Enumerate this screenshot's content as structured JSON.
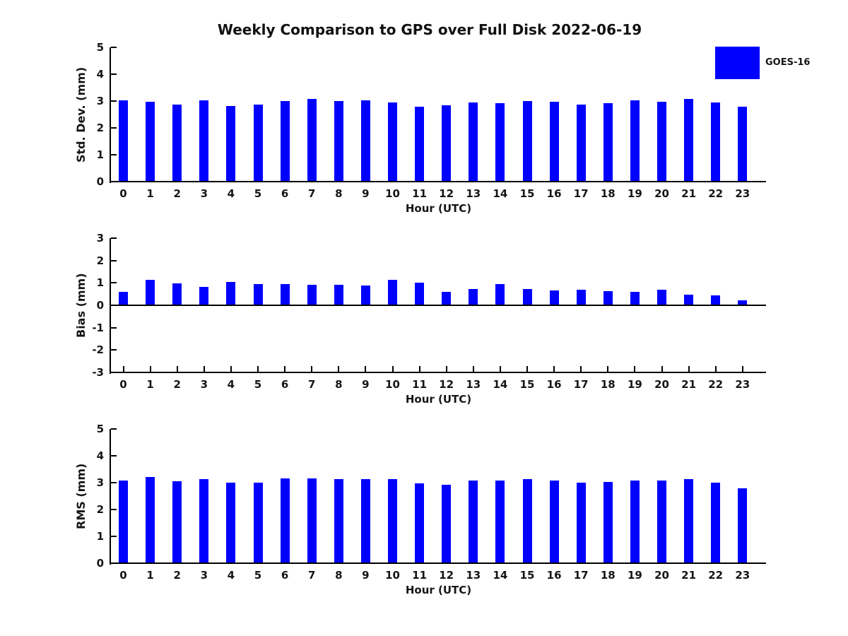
{
  "title": "Weekly Comparison to GPS over Full Disk 2022-06-19",
  "legend": {
    "label": "GOES-16",
    "color": "#0000ff",
    "position": "upper-right-outside"
  },
  "colors": {
    "bar": "#0000ff",
    "axis": "#000000",
    "text": "#151515",
    "background": "#ffffff"
  },
  "chart_data": [
    {
      "type": "bar",
      "title": "",
      "xlabel": "Hour (UTC)",
      "ylabel": "Std. Dev. (mm)",
      "categories": [
        "0",
        "1",
        "2",
        "3",
        "4",
        "5",
        "6",
        "7",
        "8",
        "9",
        "10",
        "11",
        "12",
        "13",
        "14",
        "15",
        "16",
        "17",
        "18",
        "19",
        "20",
        "21",
        "22",
        "23"
      ],
      "values": [
        3.03,
        2.97,
        2.87,
        3.03,
        2.82,
        2.88,
        3.0,
        3.07,
        3.0,
        3.03,
        2.95,
        2.78,
        2.84,
        2.95,
        2.92,
        3.01,
        2.97,
        2.88,
        2.93,
        3.02,
        2.98,
        3.09,
        2.96,
        2.78
      ],
      "ylim": [
        0,
        5
      ],
      "yticks": [
        0,
        1,
        2,
        3,
        4,
        5
      ],
      "grid": false,
      "zero_line": false,
      "series_name": "GOES-16"
    },
    {
      "type": "bar",
      "title": "",
      "xlabel": "Hour (UTC)",
      "ylabel": "Bias (mm)",
      "categories": [
        "0",
        "1",
        "2",
        "3",
        "4",
        "5",
        "6",
        "7",
        "8",
        "9",
        "10",
        "11",
        "12",
        "13",
        "14",
        "15",
        "16",
        "17",
        "18",
        "19",
        "20",
        "21",
        "22",
        "23"
      ],
      "values": [
        0.61,
        1.14,
        0.98,
        0.82,
        1.05,
        0.94,
        0.96,
        0.91,
        0.93,
        0.88,
        1.14,
        1.02,
        0.6,
        0.74,
        0.95,
        0.73,
        0.65,
        0.68,
        0.62,
        0.59,
        0.68,
        0.47,
        0.43,
        0.21
      ],
      "ylim": [
        -3,
        3
      ],
      "yticks": [
        -3,
        -2,
        -1,
        0,
        1,
        2,
        3
      ],
      "grid": false,
      "zero_line": true,
      "series_name": "GOES-16"
    },
    {
      "type": "bar",
      "title": "",
      "xlabel": "Hour (UTC)",
      "ylabel": "RMS (mm)",
      "categories": [
        "0",
        "1",
        "2",
        "3",
        "4",
        "5",
        "6",
        "7",
        "8",
        "9",
        "10",
        "11",
        "12",
        "13",
        "14",
        "15",
        "16",
        "17",
        "18",
        "19",
        "20",
        "21",
        "22",
        "23"
      ],
      "values": [
        3.09,
        3.2,
        3.04,
        3.12,
        3.01,
        3.01,
        3.15,
        3.17,
        3.14,
        3.14,
        3.14,
        2.97,
        2.92,
        3.07,
        3.09,
        3.12,
        3.07,
        3.0,
        3.02,
        3.08,
        3.07,
        3.13,
        2.99,
        2.79
      ],
      "ylim": [
        0,
        5
      ],
      "yticks": [
        0,
        1,
        2,
        3,
        4,
        5
      ],
      "grid": false,
      "zero_line": false,
      "series_name": "GOES-16"
    }
  ]
}
